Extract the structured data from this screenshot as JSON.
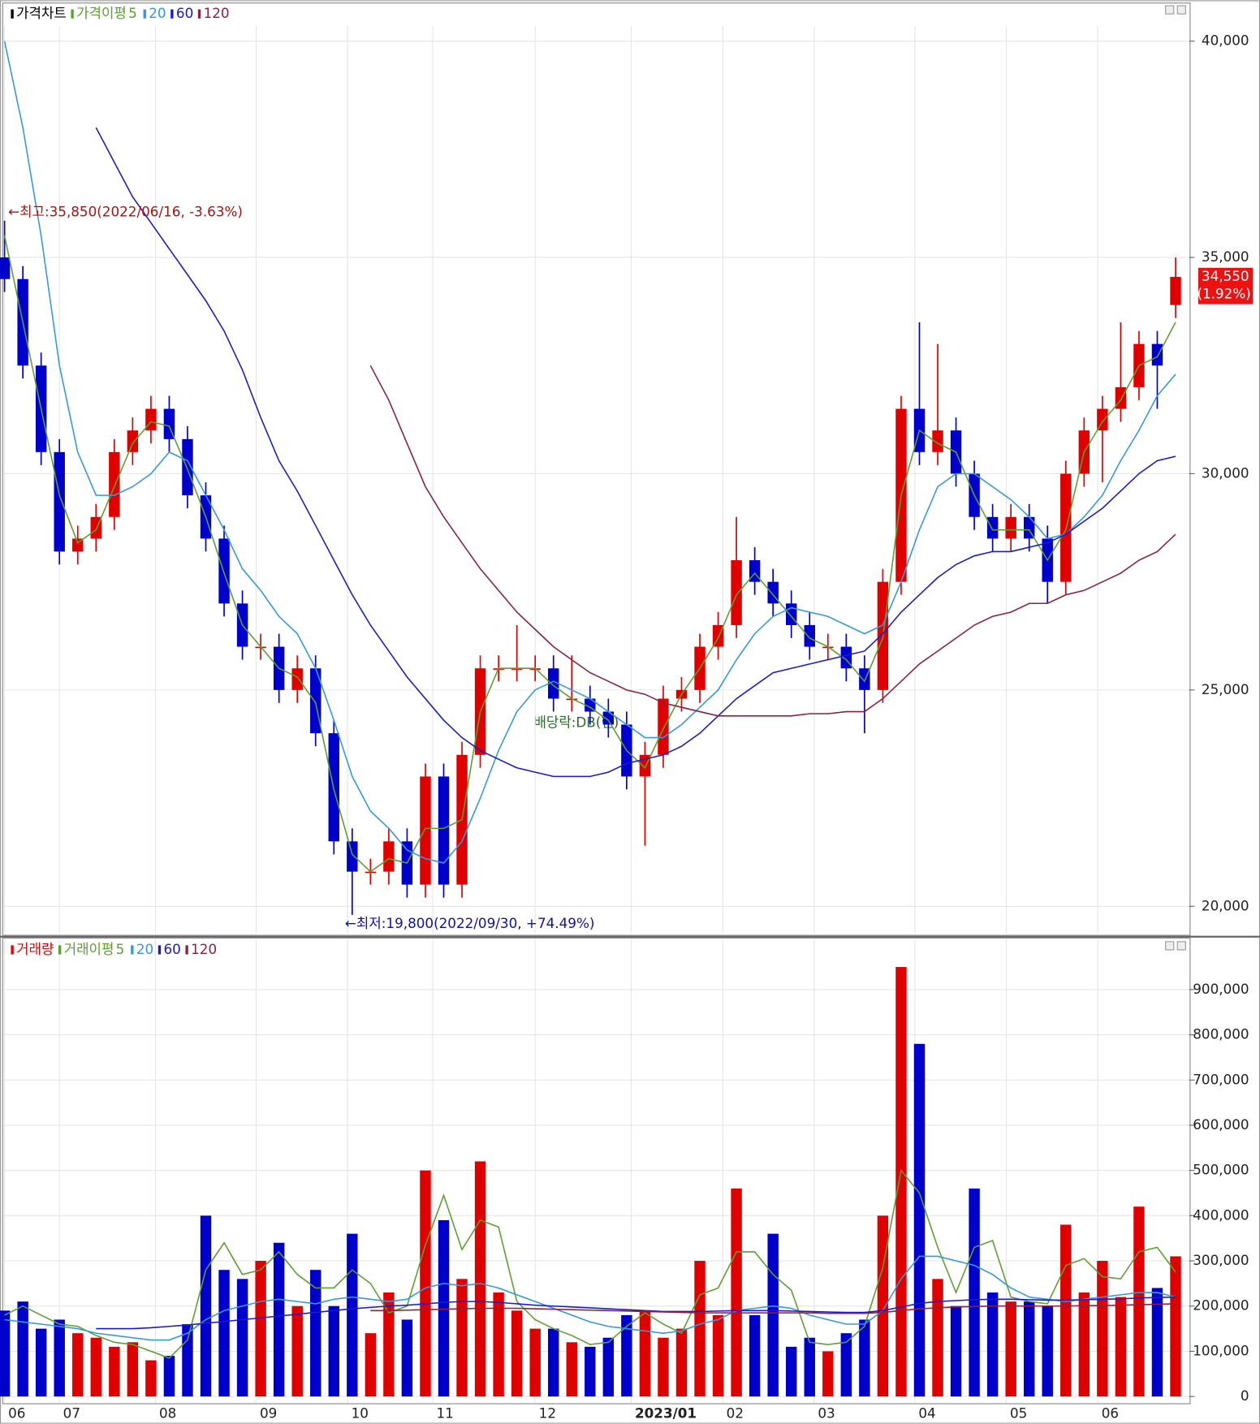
{
  "chart_data": [
    {
      "type": "candlestick",
      "title": "가격차트",
      "ma_title": "가격이평",
      "categories": [
        null,
        null,
        null,
        null,
        null,
        null,
        null,
        null,
        null,
        null,
        null,
        null,
        null,
        null,
        null,
        null,
        null,
        null,
        null,
        null,
        null,
        null,
        null,
        null,
        null,
        null,
        null,
        null,
        null,
        null,
        null,
        null,
        null,
        null,
        null,
        null,
        null,
        null,
        null,
        null,
        null,
        null,
        null,
        null,
        null,
        null,
        null,
        null,
        null,
        null,
        null,
        null,
        null,
        null,
        null,
        null,
        null,
        null,
        null,
        null,
        null,
        null,
        null,
        null,
        null
      ],
      "open": [
        35000,
        34500,
        32500,
        30500,
        28200,
        28500,
        29000,
        30500,
        31000,
        31500,
        30800,
        29500,
        28500,
        27000,
        26000,
        26000,
        25000,
        25500,
        24000,
        21500,
        20800,
        20800,
        21500,
        20500,
        23000,
        20500,
        23500,
        25500,
        25500,
        25500,
        25500,
        24800,
        24800,
        24500,
        24200,
        23000,
        23500,
        24800,
        25000,
        26000,
        26500,
        28000,
        27500,
        27000,
        26500,
        26000,
        26000,
        25500,
        25000,
        27500,
        31500,
        30500,
        31000,
        30000,
        29000,
        28500,
        29000,
        28500,
        27500,
        30000,
        31000,
        31500,
        32000,
        33000,
        33900
      ],
      "high": [
        35850,
        34800,
        32800,
        30800,
        28800,
        29300,
        30800,
        31300,
        31800,
        31800,
        31100,
        29800,
        28800,
        27300,
        26300,
        26300,
        25800,
        25800,
        24300,
        21800,
        21100,
        21800,
        21800,
        23300,
        23300,
        23800,
        25800,
        25800,
        26500,
        25800,
        25800,
        25800,
        25100,
        24800,
        24500,
        23800,
        25100,
        25300,
        26300,
        26800,
        29000,
        28300,
        27800,
        27300,
        26800,
        26300,
        26300,
        25800,
        27800,
        31800,
        33500,
        33000,
        31300,
        30300,
        29300,
        29300,
        29300,
        28800,
        30300,
        31300,
        31800,
        33500,
        33300,
        33300,
        35000
      ],
      "low": [
        34200,
        32200,
        30200,
        27900,
        27900,
        28200,
        28700,
        30200,
        30700,
        30500,
        29200,
        28200,
        26700,
        25700,
        25700,
        24700,
        24700,
        23700,
        21200,
        19800,
        20500,
        20500,
        20200,
        20200,
        20200,
        20200,
        23200,
        25200,
        25200,
        25200,
        24500,
        24500,
        24200,
        23900,
        22700,
        21400,
        23200,
        24500,
        24700,
        25700,
        26200,
        27200,
        26700,
        26200,
        25700,
        25700,
        25200,
        24000,
        24700,
        27200,
        30200,
        30200,
        29700,
        28700,
        28200,
        28200,
        28200,
        27000,
        27200,
        29700,
        29800,
        31200,
        31700,
        31500,
        33600
      ],
      "close": [
        34500,
        32500,
        30500,
        28200,
        28500,
        29000,
        30500,
        31000,
        31500,
        30800,
        29500,
        28500,
        27000,
        26000,
        26000,
        25000,
        25500,
        24000,
        21500,
        20800,
        20800,
        21500,
        20500,
        23000,
        20500,
        23500,
        25500,
        25500,
        25500,
        25500,
        24800,
        24800,
        24500,
        24200,
        23000,
        23500,
        24800,
        25000,
        26000,
        26500,
        28000,
        27500,
        27000,
        26500,
        26000,
        26000,
        25500,
        25000,
        27500,
        31500,
        30500,
        31000,
        30000,
        29000,
        28500,
        29000,
        28500,
        27500,
        30000,
        31000,
        31500,
        32000,
        33000,
        32500,
        34550
      ],
      "up_color": "#e00000",
      "down_color": "#0000cc",
      "series": [
        {
          "name": "5",
          "color": "#5aa02c",
          "values": [
            35500,
            33500,
            31500,
            29500,
            28400,
            28700,
            29700,
            30700,
            31200,
            31100,
            30100,
            29000,
            27700,
            26500,
            26000,
            25500,
            25300,
            24700,
            22700,
            21200,
            20800,
            21100,
            21000,
            21800,
            21800,
            22000,
            24500,
            25500,
            25500,
            25500,
            25100,
            24800,
            24600,
            24300,
            23600,
            23200,
            24100,
            24900,
            25500,
            26200,
            27200,
            27700,
            27200,
            26700,
            26200,
            26000,
            25700,
            25200,
            26200,
            29500,
            31000,
            30700,
            30500,
            29500,
            28700,
            28700,
            28700,
            28000,
            28700,
            30500,
            31200,
            31700,
            32500,
            32700,
            33500
          ]
        },
        {
          "name": "20",
          "color": "#3399dd",
          "values": [
            40000,
            38000,
            35500,
            32500,
            30500,
            29500,
            29500,
            29700,
            30000,
            30500,
            30300,
            29500,
            28700,
            27800,
            27300,
            26700,
            26300,
            25500,
            24300,
            23000,
            22200,
            21800,
            21300,
            21100,
            21000,
            21500,
            22500,
            23600,
            24500,
            25000,
            25200,
            25000,
            24800,
            24500,
            24200,
            23900,
            23900,
            24200,
            24600,
            25000,
            25700,
            26300,
            26700,
            26900,
            26800,
            26700,
            26500,
            26300,
            26500,
            27500,
            28700,
            29700,
            30000,
            30000,
            29700,
            29400,
            29000,
            28500,
            28600,
            29000,
            29500,
            30300,
            31000,
            31800,
            32300
          ]
        },
        {
          "name": "60",
          "color": "#1a1acc",
          "values": [
            null,
            null,
            null,
            null,
            null,
            38000,
            37200,
            36400,
            35800,
            35200,
            34600,
            34000,
            33300,
            32400,
            31300,
            30300,
            29600,
            28800,
            28000,
            27200,
            26500,
            25900,
            25300,
            24800,
            24300,
            23900,
            23600,
            23400,
            23200,
            23100,
            23000,
            23000,
            23000,
            23100,
            23300,
            23400,
            23500,
            23700,
            24000,
            24400,
            24800,
            25100,
            25400,
            25500,
            25600,
            25700,
            25800,
            25900,
            26300,
            26800,
            27200,
            27600,
            27900,
            28100,
            28200,
            28200,
            28300,
            28400,
            28600,
            28900,
            29200,
            29600,
            30000,
            30300,
            30400
          ]
        },
        {
          "name": "120",
          "color": "#8b2040",
          "values": [
            null,
            null,
            null,
            null,
            null,
            null,
            null,
            null,
            null,
            null,
            null,
            null,
            null,
            null,
            null,
            null,
            null,
            null,
            null,
            null,
            32500,
            31700,
            30700,
            29700,
            29000,
            28400,
            27800,
            27300,
            26800,
            26400,
            26000,
            25700,
            25400,
            25200,
            25000,
            24900,
            24700,
            24600,
            24500,
            24400,
            24400,
            24400,
            24400,
            24400,
            24450,
            24450,
            24500,
            24500,
            24800,
            25200,
            25600,
            25900,
            26200,
            26500,
            26700,
            26800,
            27000,
            27000,
            27200,
            27300,
            27500,
            27700,
            28000,
            28200,
            28600
          ]
        }
      ],
      "ylim": [
        19370,
        40315
      ],
      "yticks": [
        {
          "value": 20000,
          "label": "20,000"
        },
        {
          "value": 25000,
          "label": "25,000"
        },
        {
          "value": 30000,
          "label": "30,000"
        },
        {
          "value": 35000,
          "label": "35,000"
        },
        {
          "value": 40000,
          "label": "40,000"
        }
      ],
      "current": {
        "value": 34550,
        "label": "34,550",
        "change": "(1.92%)"
      },
      "annotations": {
        "high": "←최고:35,850(2022/06/16, -3.63%)",
        "low": "←최저:19,800(2022/09/30, +74.49%)",
        "dividend": "배당락:DB(현)"
      }
    },
    {
      "type": "bar",
      "title": "거래량",
      "ma_title": "거래이평",
      "values": [
        190000,
        210000,
        150000,
        170000,
        140000,
        130000,
        110000,
        120000,
        80000,
        90000,
        160000,
        400000,
        280000,
        260000,
        300000,
        340000,
        200000,
        280000,
        200000,
        360000,
        140000,
        230000,
        170000,
        500000,
        390000,
        260000,
        520000,
        230000,
        190000,
        150000,
        150000,
        120000,
        110000,
        130000,
        180000,
        190000,
        130000,
        150000,
        300000,
        180000,
        460000,
        180000,
        360000,
        110000,
        130000,
        100000,
        140000,
        170000,
        400000,
        950000,
        780000,
        260000,
        200000,
        460000,
        230000,
        210000,
        210000,
        200000,
        380000,
        230000,
        300000,
        220000,
        420000,
        240000,
        310000
      ],
      "series": [
        {
          "name": "5",
          "color": "#5aa02c",
          "values": [
            180000,
            200000,
            180000,
            160000,
            155000,
            135000,
            120000,
            115000,
            100000,
            85000,
            125000,
            280000,
            340000,
            270000,
            280000,
            320000,
            270000,
            240000,
            240000,
            280000,
            250000,
            185000,
            200000,
            335000,
            445000,
            325000,
            390000,
            375000,
            210000,
            170000,
            150000,
            135000,
            115000,
            120000,
            155000,
            185000,
            160000,
            140000,
            225000,
            240000,
            320000,
            320000,
            270000,
            235000,
            120000,
            115000,
            120000,
            155000,
            285000,
            500000,
            450000,
            330000,
            230000,
            330000,
            345000,
            220000,
            210000,
            205000,
            290000,
            305000,
            265000,
            260000,
            320000,
            330000,
            275000
          ]
        },
        {
          "name": "20",
          "color": "#3399dd",
          "values": [
            170000,
            165000,
            160000,
            155000,
            150000,
            140000,
            135000,
            130000,
            125000,
            125000,
            140000,
            170000,
            190000,
            200000,
            210000,
            215000,
            210000,
            205000,
            215000,
            220000,
            215000,
            210000,
            215000,
            240000,
            250000,
            245000,
            250000,
            240000,
            225000,
            210000,
            195000,
            180000,
            165000,
            155000,
            150000,
            145000,
            140000,
            145000,
            160000,
            170000,
            190000,
            195000,
            200000,
            195000,
            180000,
            170000,
            160000,
            160000,
            190000,
            260000,
            310000,
            310000,
            300000,
            290000,
            270000,
            240000,
            220000,
            215000,
            210000,
            215000,
            220000,
            225000,
            230000,
            230000,
            220000
          ]
        },
        {
          "name": "60",
          "color": "#1a1acc",
          "values": [
            null,
            null,
            null,
            null,
            null,
            150000,
            150000,
            150000,
            152000,
            155000,
            158000,
            162000,
            166000,
            170000,
            174000,
            178000,
            182000,
            186000,
            190000,
            194000,
            197000,
            200000,
            202000,
            205000,
            208000,
            210000,
            210000,
            208000,
            205000,
            202000,
            200000,
            198000,
            196000,
            194000,
            192000,
            190000,
            188000,
            188000,
            188000,
            189000,
            190000,
            190000,
            190000,
            189000,
            188000,
            187000,
            186000,
            186000,
            190000,
            198000,
            206000,
            210000,
            212000,
            214000,
            215000,
            215000,
            214000,
            213000,
            213000,
            214000,
            215000,
            216000,
            218000,
            219000,
            220000
          ]
        },
        {
          "name": "120",
          "color": "#8b2040",
          "values": [
            null,
            null,
            null,
            null,
            null,
            null,
            null,
            null,
            null,
            null,
            null,
            null,
            null,
            null,
            null,
            null,
            null,
            null,
            null,
            null,
            190000,
            190000,
            191000,
            192000,
            193000,
            194000,
            195000,
            195000,
            195000,
            194000,
            193000,
            192000,
            191000,
            190000,
            189000,
            188000,
            187000,
            186000,
            185000,
            185000,
            185000,
            185000,
            185000,
            185000,
            185000,
            184000,
            184000,
            184000,
            186000,
            190000,
            194000,
            196000,
            198000,
            199000,
            200000,
            200000,
            200000,
            200000,
            200000,
            201000,
            201000,
            202000,
            203000,
            204000,
            205000
          ]
        }
      ],
      "ylim": [
        -14000,
        1008000
      ],
      "yticks": [
        0,
        {
          "value": 100000,
          "label": "100,000"
        },
        {
          "value": 200000,
          "label": "200,000"
        },
        {
          "value": 300000,
          "label": "300,000"
        },
        {
          "value": 400000,
          "label": "400,000"
        },
        {
          "value": 500000,
          "label": "500,000"
        },
        {
          "value": 600000,
          "label": "600,000"
        },
        {
          "value": 700000,
          "label": "700,000"
        },
        {
          "value": 800000,
          "label": "800,000"
        },
        {
          "value": 900000,
          "label": "900,000"
        }
      ],
      "xticks": [
        {
          "value": 0,
          "label": "06"
        },
        {
          "value": 3,
          "label": "07"
        },
        {
          "value": 8.25,
          "label": "08"
        },
        {
          "value": 13.75,
          "label": "09"
        },
        {
          "value": 18.75,
          "label": "10"
        },
        {
          "value": 23.4,
          "label": "11"
        },
        {
          "value": 29,
          "label": "12"
        },
        {
          "value": 34.25,
          "label": "2023/01"
        },
        {
          "value": 39.25,
          "label": "02"
        },
        {
          "value": 44.25,
          "label": "03"
        },
        {
          "value": 49.75,
          "label": "04"
        },
        {
          "value": 54.75,
          "label": "05"
        },
        {
          "value": 59.75,
          "label": "06"
        }
      ]
    }
  ]
}
